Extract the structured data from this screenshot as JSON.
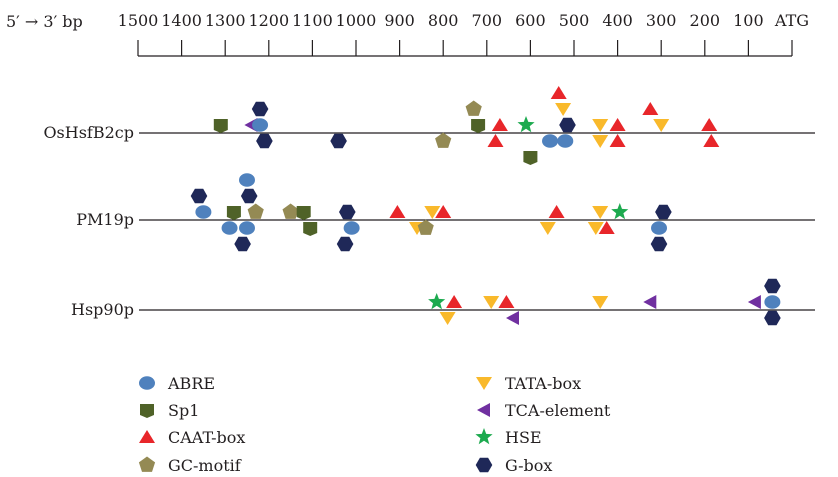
{
  "colors": {
    "ABRE": "#4f81bd",
    "Sp1": "#4f6228",
    "CAAT-box": "#e8262a",
    "GC-motif": "#948a54",
    "TATA-box": "#f9b92b",
    "TCA-element": "#7030a0",
    "HSE": "#1daa4f",
    "G-box": "#1f2858"
  },
  "chart_data": {
    "type": "scatter",
    "axis_title": "5′ → 3′ bp",
    "axis_end_label": "ATG",
    "x_ticks": [
      "1500",
      "1400",
      "1300",
      "1200",
      "1100",
      "1000",
      "900",
      "800",
      "700",
      "600",
      "500",
      "400",
      "300",
      "200",
      "100"
    ],
    "x_range": [
      1500,
      0
    ],
    "rows": [
      {
        "label": "OsHsfB2cp",
        "elements": [
          {
            "type": "Sp1",
            "x": 1310,
            "side": 1
          },
          {
            "type": "TCA-element",
            "x": 1240,
            "side": 1
          },
          {
            "type": "G-box",
            "x": 1220,
            "side": 2
          },
          {
            "type": "ABRE",
            "x": 1220,
            "side": 1
          },
          {
            "type": "G-box",
            "x": 1210,
            "side": -1
          },
          {
            "type": "G-box",
            "x": 1040,
            "side": -1
          },
          {
            "type": "GC-motif",
            "x": 800,
            "side": -1
          },
          {
            "type": "GC-motif",
            "x": 730,
            "side": 2
          },
          {
            "type": "Sp1",
            "x": 720,
            "side": 1
          },
          {
            "type": "CAAT-box",
            "x": 670,
            "side": 1
          },
          {
            "type": "CAAT-box",
            "x": 680,
            "side": -1
          },
          {
            "type": "HSE",
            "x": 610,
            "side": 1
          },
          {
            "type": "Sp1",
            "x": 600,
            "side": -2
          },
          {
            "type": "ABRE",
            "x": 555,
            "side": -1
          },
          {
            "type": "CAAT-box",
            "x": 535,
            "side": 3
          },
          {
            "type": "TATA-box",
            "x": 525,
            "side": 2
          },
          {
            "type": "ABRE",
            "x": 520,
            "side": -1
          },
          {
            "type": "G-box",
            "x": 515,
            "side": 1
          },
          {
            "type": "TATA-box",
            "x": 440,
            "side": 1
          },
          {
            "type": "TATA-box",
            "x": 440,
            "side": -1
          },
          {
            "type": "CAAT-box",
            "x": 400,
            "side": 1
          },
          {
            "type": "CAAT-box",
            "x": 400,
            "side": -1
          },
          {
            "type": "CAAT-box",
            "x": 325,
            "side": 2
          },
          {
            "type": "TATA-box",
            "x": 300,
            "side": 1
          },
          {
            "type": "CAAT-box",
            "x": 190,
            "side": 1
          },
          {
            "type": "CAAT-box",
            "x": 185,
            "side": -1
          }
        ]
      },
      {
        "label": "PM19p",
        "elements": [
          {
            "type": "G-box",
            "x": 1360,
            "side": 2
          },
          {
            "type": "ABRE",
            "x": 1350,
            "side": 1
          },
          {
            "type": "ABRE",
            "x": 1290,
            "side": -1
          },
          {
            "type": "Sp1",
            "x": 1280,
            "side": 1
          },
          {
            "type": "G-box",
            "x": 1260,
            "side": -2
          },
          {
            "type": "ABRE",
            "x": 1250,
            "side": 3
          },
          {
            "type": "G-box",
            "x": 1245,
            "side": 2
          },
          {
            "type": "ABRE",
            "x": 1250,
            "side": -1
          },
          {
            "type": "GC-motif",
            "x": 1230,
            "side": 1
          },
          {
            "type": "GC-motif",
            "x": 1150,
            "side": 1
          },
          {
            "type": "Sp1",
            "x": 1120,
            "side": 1
          },
          {
            "type": "Sp1",
            "x": 1105,
            "side": -1
          },
          {
            "type": "G-box",
            "x": 1020,
            "side": 1
          },
          {
            "type": "G-box",
            "x": 1025,
            "side": -2
          },
          {
            "type": "ABRE",
            "x": 1010,
            "side": -1
          },
          {
            "type": "CAAT-box",
            "x": 905,
            "side": 1
          },
          {
            "type": "TATA-box",
            "x": 860,
            "side": -1
          },
          {
            "type": "TATA-box",
            "x": 825,
            "side": 1
          },
          {
            "type": "GC-motif",
            "x": 840,
            "side": -1
          },
          {
            "type": "CAAT-box",
            "x": 800,
            "side": 1
          },
          {
            "type": "TATA-box",
            "x": 560,
            "side": -1
          },
          {
            "type": "CAAT-box",
            "x": 540,
            "side": 1
          },
          {
            "type": "TATA-box",
            "x": 450,
            "side": -1
          },
          {
            "type": "TATA-box",
            "x": 440,
            "side": 1
          },
          {
            "type": "CAAT-box",
            "x": 425,
            "side": -1
          },
          {
            "type": "HSE",
            "x": 395,
            "side": 1
          },
          {
            "type": "G-box",
            "x": 295,
            "side": 1
          },
          {
            "type": "ABRE",
            "x": 305,
            "side": -1
          },
          {
            "type": "G-box",
            "x": 305,
            "side": -2
          }
        ]
      },
      {
        "label": "Hsp90p",
        "elements": [
          {
            "type": "HSE",
            "x": 815,
            "side": 1
          },
          {
            "type": "CAAT-box",
            "x": 775,
            "side": 1
          },
          {
            "type": "TATA-box",
            "x": 790,
            "side": -1
          },
          {
            "type": "TATA-box",
            "x": 690,
            "side": 1
          },
          {
            "type": "CAAT-box",
            "x": 655,
            "side": 1
          },
          {
            "type": "TCA-element",
            "x": 640,
            "side": -1
          },
          {
            "type": "TATA-box",
            "x": 440,
            "side": 1
          },
          {
            "type": "TCA-element",
            "x": 325,
            "side": 1
          },
          {
            "type": "TCA-element",
            "x": 85,
            "side": 1
          },
          {
            "type": "G-box",
            "x": 45,
            "side": 2
          },
          {
            "type": "ABRE",
            "x": 45,
            "side": 1
          },
          {
            "type": "G-box",
            "x": 45,
            "side": -1
          }
        ]
      }
    ],
    "legend": [
      {
        "label": "ABRE",
        "type": "ABRE"
      },
      {
        "label": "Sp1",
        "type": "Sp1"
      },
      {
        "label": "CAAT-box",
        "type": "CAAT-box"
      },
      {
        "label": "GC-motif",
        "type": "GC-motif"
      },
      {
        "label": "TATA-box",
        "type": "TATA-box"
      },
      {
        "label": "TCA-element",
        "type": "TCA-element"
      },
      {
        "label": "HSE",
        "type": "HSE"
      },
      {
        "label": "G-box",
        "type": "G-box"
      }
    ]
  }
}
